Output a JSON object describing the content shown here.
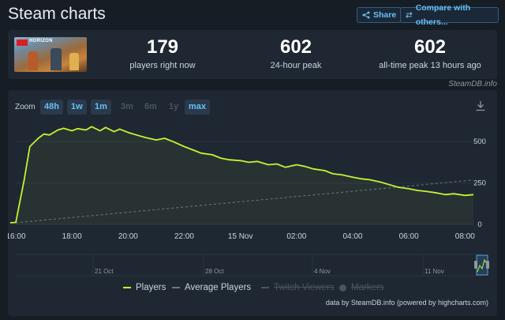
{
  "header": {
    "title": "Steam charts",
    "share_label": "Share",
    "compare_label": "Compare with others..."
  },
  "game": {
    "thumbnail_icon": "game-cover-art",
    "logo_text": "HORIZON"
  },
  "stats": [
    {
      "value": "179",
      "label": "players right now"
    },
    {
      "value": "602",
      "label": "24-hour peak"
    },
    {
      "value": "602",
      "label": "all-time peak 13 hours ago"
    }
  ],
  "credit_top": "SteamDB.info",
  "zoom": {
    "label": "Zoom",
    "options": [
      {
        "label": "48h",
        "enabled": true
      },
      {
        "label": "1w",
        "enabled": true
      },
      {
        "label": "1m",
        "enabled": true
      },
      {
        "label": "3m",
        "enabled": false
      },
      {
        "label": "6m",
        "enabled": false
      },
      {
        "label": "1y",
        "enabled": false
      },
      {
        "label": "max",
        "enabled": true
      }
    ]
  },
  "legend": {
    "players": "Players",
    "average": "Average Players",
    "twitch": "Twitch Viewers",
    "markers": "Markers"
  },
  "credit_bottom": "data by SteamDB.info (powered by highcharts.com)",
  "colors": {
    "background": "#171d25",
    "panel": "#1f2732",
    "accent": "#66c0f4",
    "players_line": "#c5f233",
    "average_line": "#6b7682"
  },
  "chart_data": {
    "type": "line",
    "x_ticks": [
      "16:00",
      "18:00",
      "20:00",
      "22:00",
      "15 Nov",
      "02:00",
      "04:00",
      "06:00",
      "08:00"
    ],
    "y_ticks": [
      "0",
      "250",
      "500"
    ],
    "ylim": [
      0,
      620
    ],
    "xlim": [
      0,
      16.3
    ],
    "series": [
      {
        "name": "Players",
        "x": [
          -0.2,
          0,
          0.3,
          0.5,
          0.8,
          1.0,
          1.2,
          1.5,
          1.7,
          2.0,
          2.2,
          2.5,
          2.7,
          3.0,
          3.2,
          3.5,
          3.7,
          4.0,
          4.3,
          4.6,
          5.0,
          5.3,
          5.6,
          6.0,
          6.3,
          6.6,
          7.0,
          7.3,
          7.6,
          8.0,
          8.3,
          8.6,
          9.0,
          9.3,
          9.6,
          10.0,
          10.3,
          10.6,
          11.0,
          11.3,
          11.6,
          12.0,
          12.3,
          12.6,
          13.0,
          13.3,
          13.6,
          14.0,
          14.3,
          14.6,
          15.0,
          15.3,
          15.6,
          16.0,
          16.3
        ],
        "y": [
          10,
          12,
          270,
          470,
          520,
          545,
          540,
          570,
          580,
          565,
          578,
          570,
          590,
          565,
          585,
          560,
          575,
          555,
          540,
          525,
          510,
          520,
          500,
          470,
          450,
          430,
          420,
          400,
          390,
          385,
          375,
          380,
          360,
          365,
          345,
          360,
          350,
          335,
          325,
          305,
          300,
          285,
          275,
          270,
          255,
          240,
          225,
          215,
          205,
          200,
          190,
          180,
          185,
          175,
          180
        ]
      },
      {
        "name": "Average Players",
        "x": [
          0,
          16.3
        ],
        "y": [
          10,
          268
        ]
      }
    ],
    "navigator": {
      "labels": [
        "21 Oct",
        "28 Oct",
        "4 Nov",
        "11 Nov"
      ]
    }
  }
}
